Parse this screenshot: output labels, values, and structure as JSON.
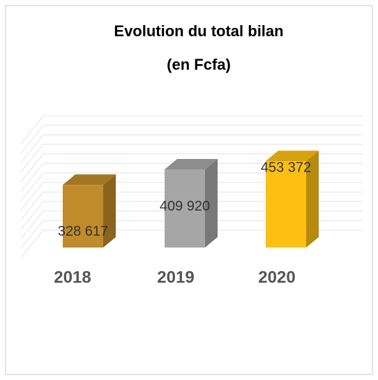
{
  "chart_data": {
    "type": "bar3d",
    "title": "Evolution du total bilan",
    "subtitle": "(en Fcfa)",
    "categories": [
      "2018",
      "2019",
      "2020"
    ],
    "values": [
      328617,
      409920,
      453372
    ],
    "value_labels": [
      "328 617",
      "409 920",
      "453 372"
    ],
    "colors": [
      "#c08b2a",
      "#a6a6a6",
      "#fdbf12"
    ],
    "ylim": [
      0,
      600000
    ],
    "yticks": [
      0,
      50000,
      100000,
      150000,
      200000,
      250000,
      300000,
      350000,
      400000,
      450000,
      500000,
      550000,
      600000
    ],
    "grid": true
  }
}
